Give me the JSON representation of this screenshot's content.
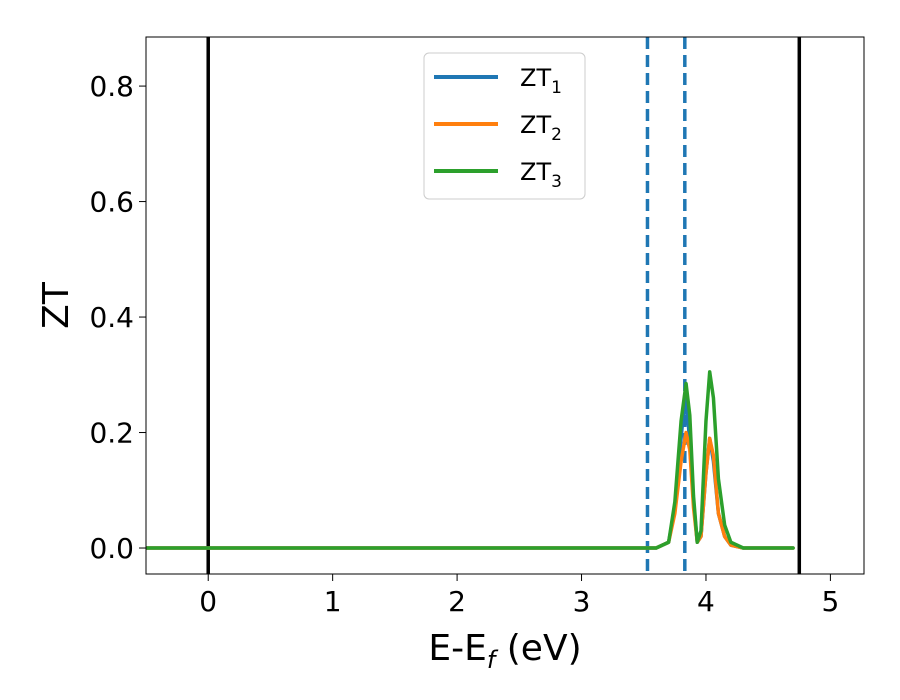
{
  "chart_data": {
    "type": "line",
    "xlabel": "E-E",
    "xlabel_sub": "f",
    "xlabel_unit": "(eV)",
    "ylabel": "ZT",
    "xlim": [
      -0.5,
      5.27
    ],
    "ylim": [
      -0.045,
      0.885
    ],
    "xticks": [
      0,
      1,
      2,
      3,
      4,
      5
    ],
    "xtick_labels": [
      "0",
      "1",
      "2",
      "3",
      "4",
      "5"
    ],
    "yticks": [
      0.0,
      0.2,
      0.4,
      0.6,
      0.8
    ],
    "ytick_labels": [
      "0.0",
      "0.2",
      "0.4",
      "0.6",
      "0.8"
    ],
    "grid": false,
    "legend_position": "top-center",
    "vertical_lines": [
      {
        "x": 0.0,
        "style": "solid",
        "color": "#000000"
      },
      {
        "x": 4.75,
        "style": "solid",
        "color": "#000000"
      },
      {
        "x": 3.53,
        "style": "dashed",
        "color": "#1f77b4"
      },
      {
        "x": 3.83,
        "style": "dashed",
        "color": "#1f77b4"
      }
    ],
    "series": [
      {
        "name": "ZT",
        "name_sub": "1",
        "color": "#1f77b4",
        "x": [
          -0.5,
          3.5,
          3.6,
          3.7,
          3.75,
          3.8,
          3.83,
          3.86,
          3.9,
          3.93,
          3.96,
          4.0,
          4.03,
          4.06,
          4.1,
          4.15,
          4.2,
          4.3,
          4.4,
          4.5,
          4.7
        ],
        "y": [
          0.0,
          0.0,
          0.0,
          0.01,
          0.07,
          0.19,
          0.26,
          0.21,
          0.08,
          0.01,
          0.02,
          0.13,
          0.19,
          0.15,
          0.06,
          0.02,
          0.005,
          0.0,
          0.0,
          0.0,
          0.0
        ]
      },
      {
        "name": "ZT",
        "name_sub": "2",
        "color": "#ff7f0e",
        "x": [
          -0.5,
          3.5,
          3.6,
          3.7,
          3.75,
          3.8,
          3.84,
          3.87,
          3.9,
          3.93,
          3.96,
          4.0,
          4.03,
          4.06,
          4.1,
          4.15,
          4.2,
          4.3,
          4.4,
          4.5,
          4.7
        ],
        "y": [
          0.0,
          0.0,
          0.0,
          0.01,
          0.06,
          0.15,
          0.2,
          0.17,
          0.07,
          0.01,
          0.02,
          0.13,
          0.19,
          0.16,
          0.06,
          0.02,
          0.005,
          0.0,
          0.0,
          0.0,
          0.0
        ]
      },
      {
        "name": "ZT",
        "name_sub": "3",
        "color": "#2ca02c",
        "x": [
          -0.5,
          3.5,
          3.6,
          3.7,
          3.75,
          3.8,
          3.84,
          3.87,
          3.9,
          3.93,
          3.96,
          4.0,
          4.03,
          4.06,
          4.1,
          4.15,
          4.2,
          4.3,
          4.4,
          4.5,
          4.7
        ],
        "y": [
          0.0,
          0.0,
          0.0,
          0.01,
          0.08,
          0.22,
          0.285,
          0.23,
          0.09,
          0.01,
          0.03,
          0.22,
          0.305,
          0.26,
          0.12,
          0.04,
          0.01,
          0.0,
          0.0,
          0.0,
          0.0
        ]
      }
    ]
  }
}
